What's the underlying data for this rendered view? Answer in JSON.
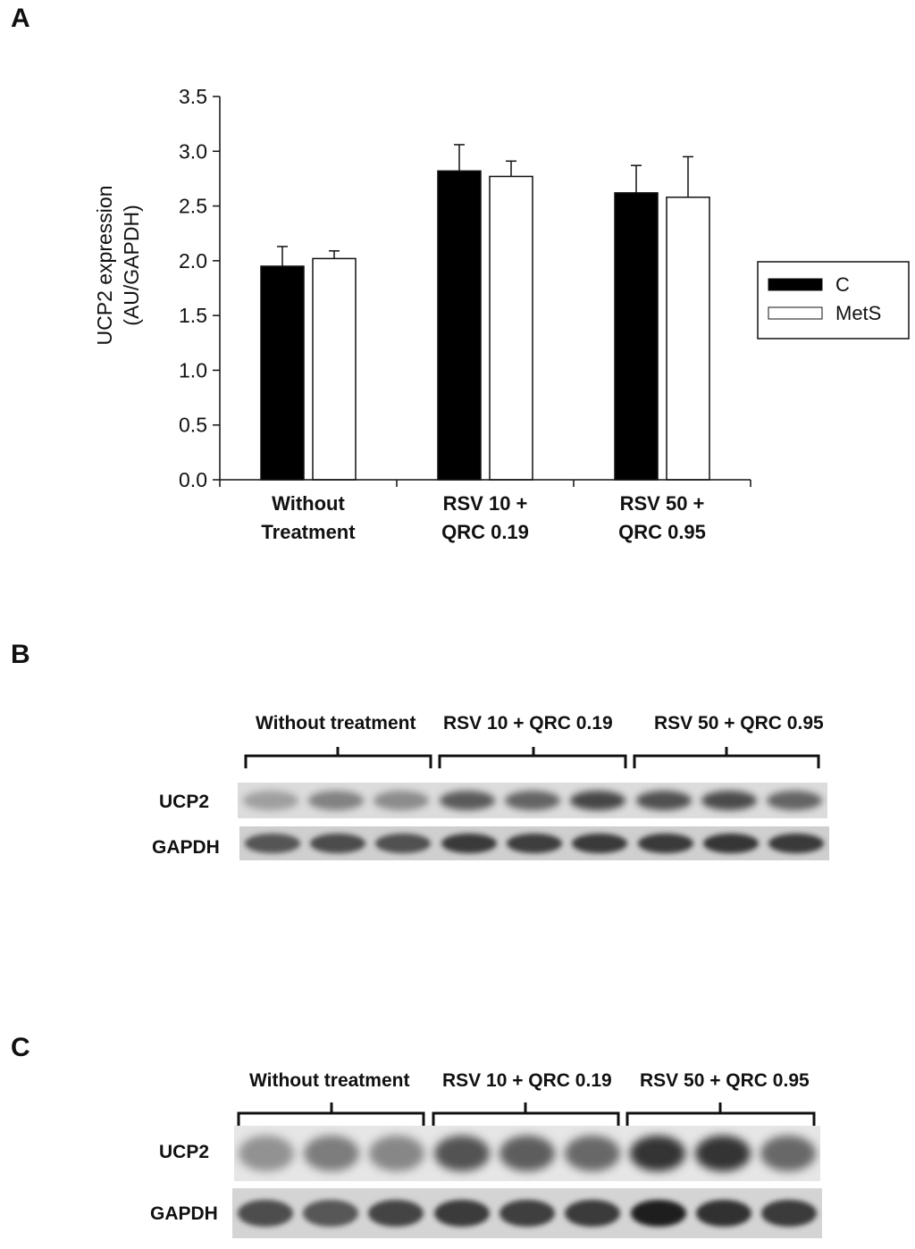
{
  "panels": {
    "a": "A",
    "b": "B",
    "c": "C"
  },
  "chart_data": {
    "type": "bar",
    "ylabel_line1": "UCP2 expression",
    "ylabel_line2": "(AU/GAPDH)",
    "ylim": [
      0,
      3.5
    ],
    "yticks": [
      "0.0",
      "0.5",
      "1.0",
      "1.5",
      "2.0",
      "2.5",
      "3.0",
      "3.5"
    ],
    "categories": [
      [
        "Without",
        "Treatment"
      ],
      [
        "RSV 10 +",
        "QRC  0.19"
      ],
      [
        "RSV 50 +",
        "QRC  0.95"
      ]
    ],
    "series": [
      {
        "name": "C",
        "color": "#000000",
        "values": [
          1.95,
          2.82,
          2.62
        ],
        "errors": [
          0.18,
          0.24,
          0.25
        ]
      },
      {
        "name": "MetS",
        "color": "#ffffff",
        "values": [
          2.02,
          2.77,
          2.58
        ],
        "errors": [
          0.07,
          0.14,
          0.37
        ]
      }
    ],
    "legend_position": "right"
  },
  "blot_b": {
    "groups": [
      "Without treatment",
      "RSV 10 + QRC  0.19",
      "RSV 50 + QRC  0.95"
    ],
    "rows": [
      "UCP2",
      "GAPDH"
    ]
  },
  "blot_c": {
    "groups": [
      "Without treatment",
      "RSV 10 + QRC  0.19",
      "RSV 50 + QRC  0.95"
    ],
    "rows": [
      "UCP2",
      "GAPDH"
    ]
  }
}
